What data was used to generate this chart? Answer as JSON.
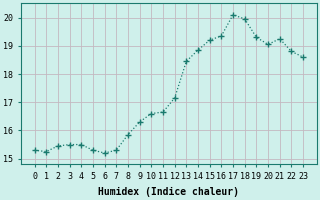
{
  "x": [
    0,
    1,
    2,
    3,
    4,
    5,
    6,
    7,
    8,
    9,
    10,
    11,
    12,
    13,
    14,
    15,
    16,
    17,
    18,
    19,
    20,
    21,
    22,
    23
  ],
  "y": [
    15.3,
    15.25,
    15.45,
    15.5,
    15.5,
    15.3,
    15.2,
    15.3,
    15.85,
    16.3,
    16.6,
    16.65,
    17.15,
    18.45,
    18.85,
    19.2,
    19.35,
    20.1,
    19.95,
    19.3,
    19.05,
    19.25,
    18.8,
    18.6
  ],
  "line_color": "#1a7a6e",
  "marker": "+",
  "marker_size": 4,
  "bg_color": "#cff0eb",
  "grid_color": "#b8d8d3",
  "xlabel": "Humidex (Indice chaleur)",
  "xlabel_fontsize": 7,
  "tick_fontsize": 6,
  "ylim": [
    14.8,
    20.5
  ],
  "yticks": [
    15,
    16,
    17,
    18,
    19,
    20
  ],
  "xticks": [
    0,
    1,
    2,
    3,
    4,
    5,
    6,
    7,
    8,
    9,
    10,
    11,
    12,
    13,
    14,
    15,
    16,
    17,
    18,
    19,
    20,
    21,
    22,
    23
  ],
  "xtick_labels": [
    "0",
    "1",
    "2",
    "3",
    "4",
    "5",
    "6",
    "7",
    "8",
    "9",
    "10",
    "11",
    "12",
    "13",
    "14",
    "15",
    "16",
    "17",
    "18",
    "19",
    "20",
    "21",
    "22",
    "23"
  ],
  "spine_color": "#1a7a6e"
}
